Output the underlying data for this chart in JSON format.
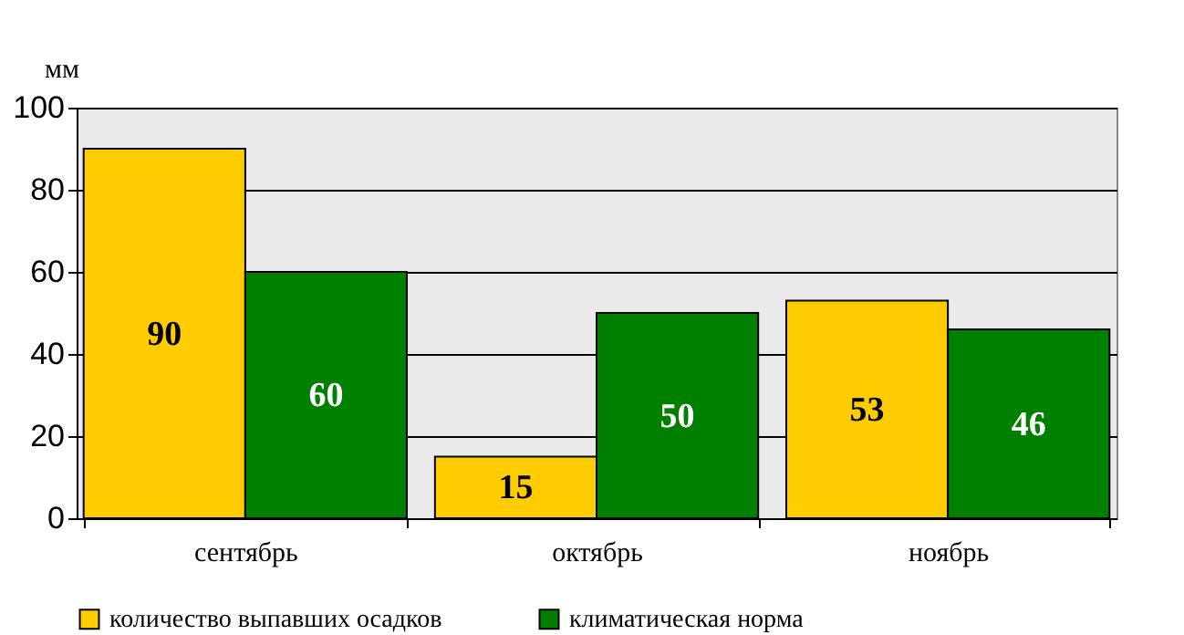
{
  "chart_data": {
    "type": "bar",
    "ylabel": "мм",
    "categories": [
      "сентябрь",
      "октябрь",
      "ноябрь"
    ],
    "series": [
      {
        "name": "количество выпавших осадков",
        "color": "#ffcc00",
        "values": [
          90,
          15,
          53
        ]
      },
      {
        "name": "климатическая норма",
        "color": "#008000",
        "values": [
          60,
          50,
          46
        ]
      }
    ],
    "ylim": [
      0,
      100
    ],
    "yticks": [
      0,
      20,
      40,
      60,
      80,
      100
    ],
    "grid": "y",
    "legend": "bottom",
    "data_labels": true
  }
}
